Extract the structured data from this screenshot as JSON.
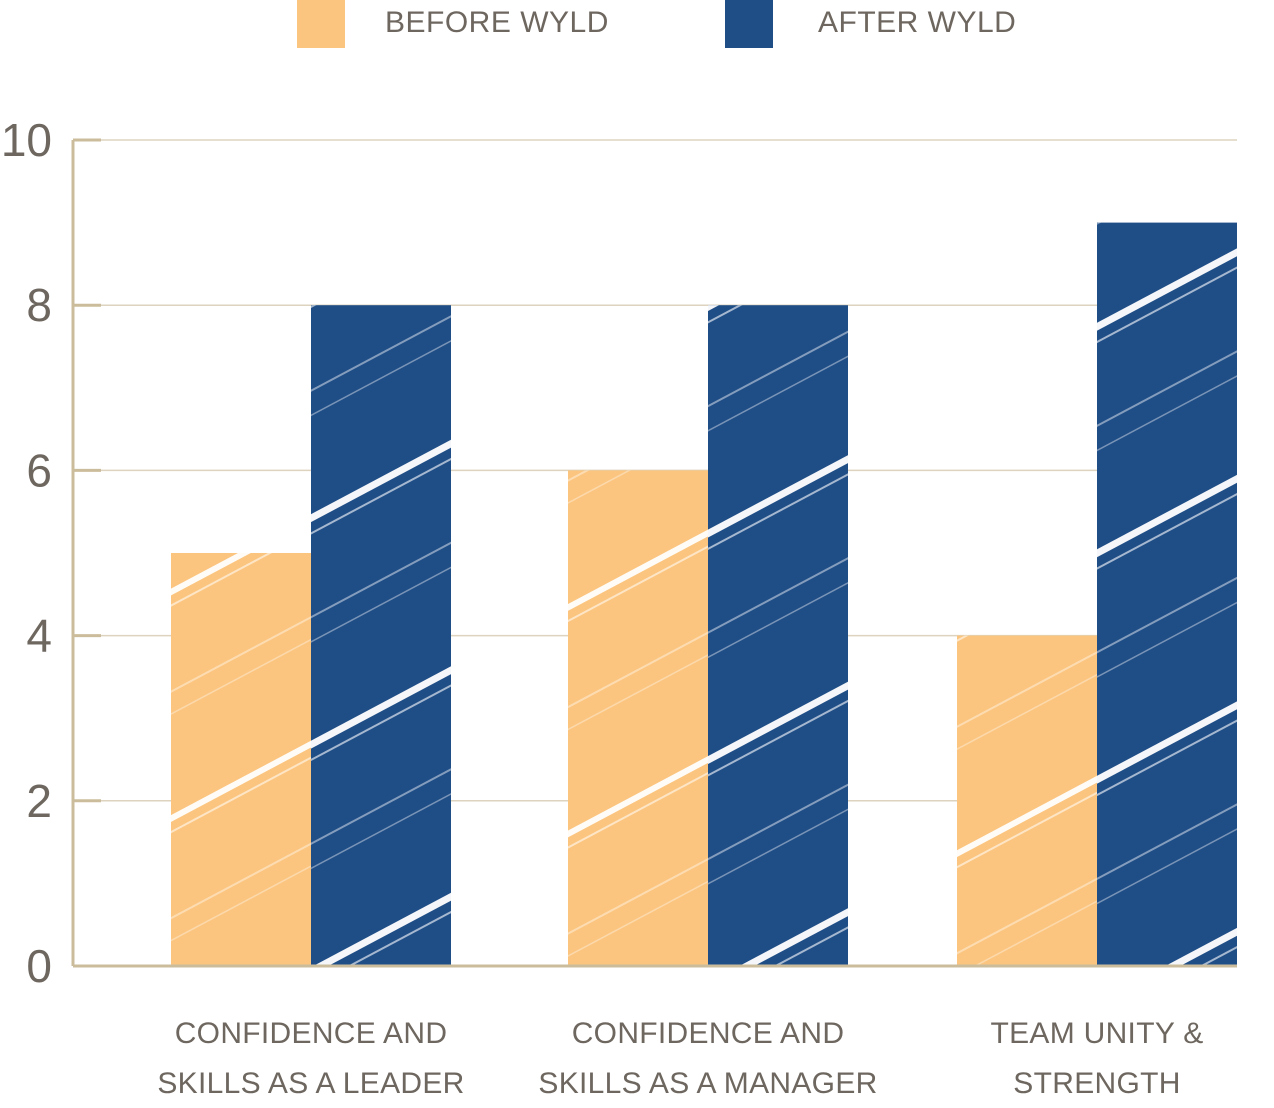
{
  "chart_data": {
    "type": "bar",
    "categories": [
      [
        "CONFIDENCE AND",
        "SKILLS AS A LEADER"
      ],
      [
        "CONFIDENCE AND",
        "SKILLS AS A MANAGER"
      ],
      [
        "TEAM UNITY &",
        "STRENGTH"
      ]
    ],
    "series": [
      {
        "name": "BEFORE WYLD",
        "color": "#fbc57f",
        "values": [
          5,
          6,
          4
        ]
      },
      {
        "name": "AFTER WYLD",
        "color": "#1f4d86",
        "values": [
          8,
          8,
          9
        ]
      }
    ],
    "yticks": [
      "0",
      "2",
      "4",
      "6",
      "8",
      "10"
    ],
    "ylim": [
      0,
      10
    ],
    "grid": true,
    "legend": "top-center",
    "texture": "brush-stroke"
  }
}
